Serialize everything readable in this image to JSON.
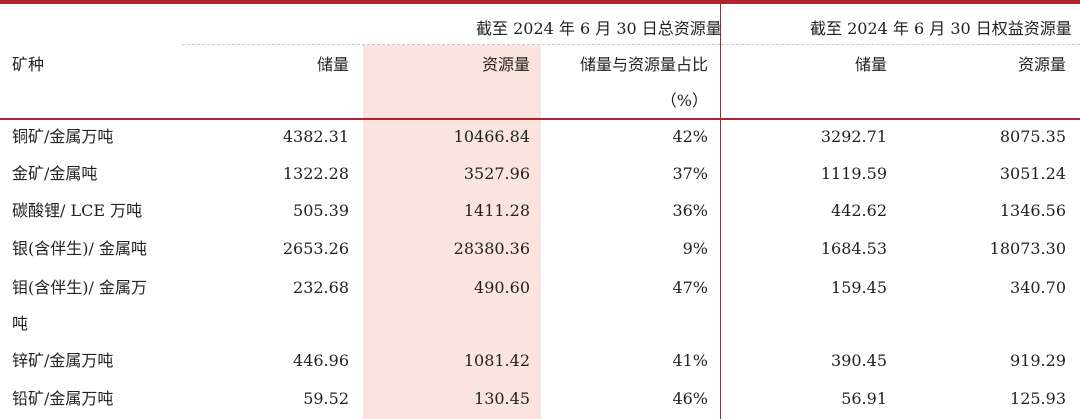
{
  "header": {
    "total_group": "截至 2024 年 6 月 30 日总资源量",
    "equity_group": "截至 2024 年 6 月 30 日权益资源量",
    "mineral": "矿种",
    "reserves": "储量",
    "resources": "资源量",
    "ratio": "储量与资源量占比",
    "ratio_unit": "（%）",
    "equity_reserves": "储量",
    "equity_resources": "资源量"
  },
  "rows": [
    {
      "mineral": "铜矿/金属万吨",
      "reserves": "4382.31",
      "resources": "10466.84",
      "ratio": "42%",
      "equity_reserves": "3292.71",
      "equity_resources": "8075.35"
    },
    {
      "mineral": "金矿/金属吨",
      "reserves": "1322.28",
      "resources": "3527.96",
      "ratio": "37%",
      "equity_reserves": "1119.59",
      "equity_resources": "3051.24"
    },
    {
      "mineral": "碳酸锂/ LCE 万吨",
      "reserves": "505.39",
      "resources": "1411.28",
      "ratio": "36%",
      "equity_reserves": "442.62",
      "equity_resources": "1346.56"
    },
    {
      "mineral": "银(含伴生)/ 金属吨",
      "reserves": "2653.26",
      "resources": "28380.36",
      "ratio": "9%",
      "equity_reserves": "1684.53",
      "equity_resources": "18073.30"
    },
    {
      "mineral": "钼(含伴生)/ 金属万",
      "mineral_cont": "吨",
      "reserves": "232.68",
      "resources": "490.60",
      "ratio": "47%",
      "equity_reserves": "159.45",
      "equity_resources": "340.70"
    },
    {
      "mineral": "锌矿/金属万吨",
      "reserves": "446.96",
      "resources": "1081.42",
      "ratio": "41%",
      "equity_reserves": "390.45",
      "equity_resources": "919.29"
    },
    {
      "mineral": "铅矿/金属万吨",
      "reserves": "59.52",
      "resources": "130.45",
      "ratio": "46%",
      "equity_reserves": "56.91",
      "equity_resources": "125.93"
    }
  ]
}
